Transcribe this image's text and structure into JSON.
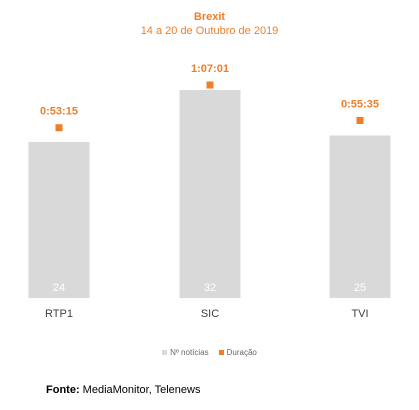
{
  "chart_data": {
    "type": "bar",
    "title": "Brexit",
    "subtitle": "14 a 20 de Outubro de 2019",
    "categories": [
      "RTP1",
      "SIC",
      "TVI"
    ],
    "series": [
      {
        "name": "Nº notícias",
        "type": "bar",
        "values": [
          24,
          32,
          25
        ],
        "color": "#d9d9d9"
      },
      {
        "name": "Duração",
        "type": "marker",
        "values": [
          "0:53:15",
          "1:07:01",
          "0:55:35"
        ],
        "seconds": [
          3195,
          4021,
          3335
        ],
        "color": "#f07e26"
      }
    ],
    "legend_position": "bottom",
    "grid": false
  },
  "footer": {
    "label": "Fonte:",
    "text": " MediaMonitor, Telenews"
  },
  "colors": {
    "accent": "#f07e26",
    "bar": "#d9d9d9",
    "bar_label": "#ffffff",
    "axis_label": "#404040"
  }
}
